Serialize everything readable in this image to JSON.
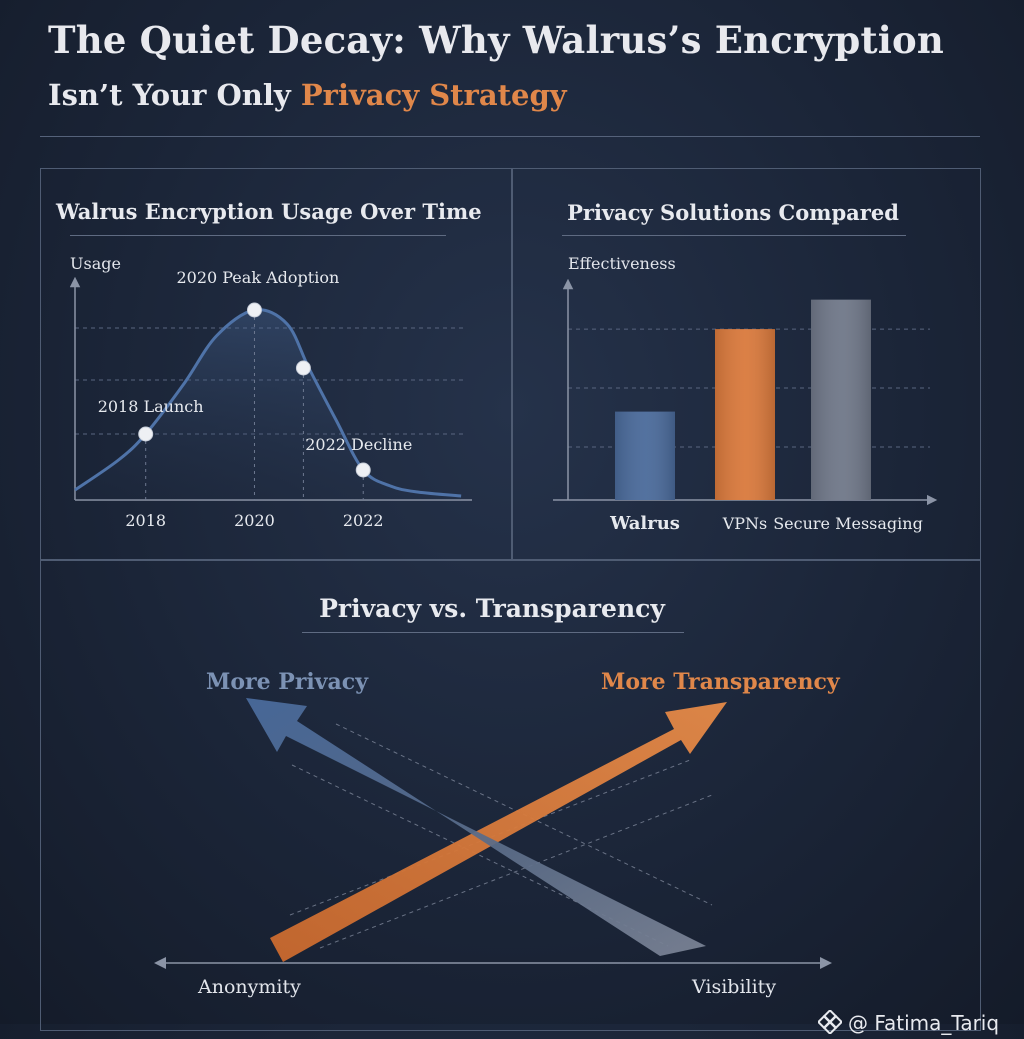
{
  "header": {
    "title_line1": "The Quiet Decay: Why Walrus’s Encryption",
    "title_line2_prefix": "Isn’t Your Only ",
    "title_line2_accent": "Privacy Strategy"
  },
  "colors": {
    "background": "#1b2538",
    "accent_orange": "#e0874a",
    "accent_blue": "#4a6a9a",
    "gray": "#6f7788",
    "text": "#e8eaef"
  },
  "chart_data": [
    {
      "type": "line",
      "title": "Walrus Encryption Usage Over Time",
      "ylabel": "Usage",
      "xlabel": "",
      "x_ticks": [
        "2018",
        "2020",
        "2022"
      ],
      "x_range": [
        2016.7,
        2024.0
      ],
      "y_range": [
        0,
        100
      ],
      "grid": "horizontal-dashed",
      "series": [
        {
          "x": [
            2016.7,
            2017.5,
            2018.0,
            2018.7,
            2019.3,
            2020.0,
            2020.6,
            2021.0,
            2021.5,
            2022.0,
            2022.5,
            2023.0,
            2023.8
          ],
          "y": [
            5,
            20,
            33,
            58,
            82,
            95,
            88,
            66,
            40,
            15,
            7,
            4,
            2
          ]
        }
      ],
      "highlighted_points": [
        {
          "x": 2018.0,
          "y": 33,
          "label": "2018 Launch"
        },
        {
          "x": 2020.0,
          "y": 95,
          "label": "2020 Peak Adoption"
        },
        {
          "x": 2020.9,
          "y": 66,
          "label": ""
        },
        {
          "x": 2022.0,
          "y": 15,
          "label": "2022 Decline"
        }
      ]
    },
    {
      "type": "bar",
      "title": "Privacy Solutions Compared",
      "ylabel": "Effectiveness",
      "xlabel": "",
      "categories": [
        "Walrus",
        "VPNs",
        "Secure Messaging"
      ],
      "values": [
        45,
        87,
        102
      ],
      "y_range": [
        0,
        112
      ],
      "grid": "horizontal-dashed",
      "bar_colors": [
        "#4a6a9a",
        "#d9793c",
        "#6f7788"
      ]
    },
    {
      "type": "diagram",
      "title": "Privacy vs. Transparency",
      "arrows": [
        {
          "label": "More Privacy",
          "color": "#4a6a9a",
          "direction": "up-left"
        },
        {
          "label": "More Transparency",
          "color": "#e0874a",
          "direction": "up-right"
        }
      ],
      "axis_labels": {
        "left": "Anonymity",
        "right": "Visibility"
      }
    }
  ],
  "credit": {
    "text": "@ Fatima_Tariq"
  }
}
